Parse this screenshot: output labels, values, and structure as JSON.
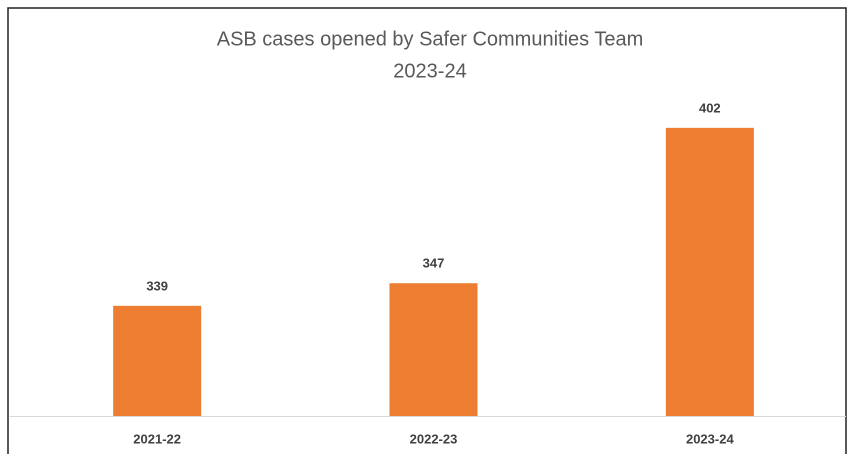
{
  "chart_data": {
    "type": "bar",
    "title": [
      "ASB cases opened by Safer Communities Team",
      "2023-24"
    ],
    "categories": [
      "2021-22",
      "2022-23",
      "2023-24"
    ],
    "values": [
      339,
      347,
      402
    ],
    "color": "#ed7d31",
    "ylim": [
      300,
      420
    ]
  }
}
